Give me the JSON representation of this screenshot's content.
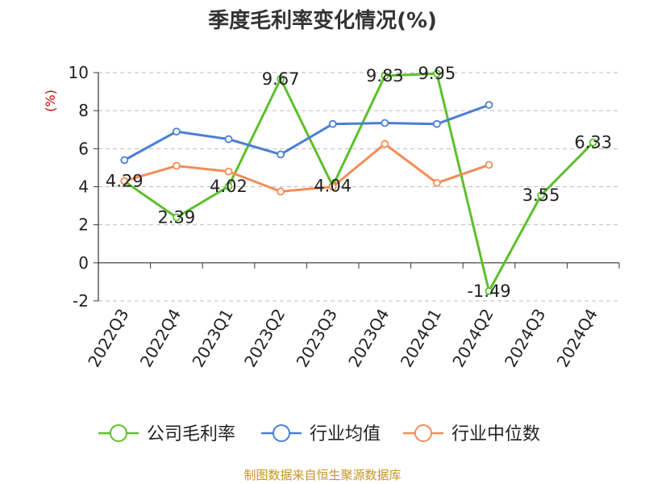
{
  "chart_data": {
    "type": "line",
    "title": "季度毛利率变化情况(%)",
    "ylabel": "(%)",
    "ylim": [
      -2,
      10
    ],
    "yticks": [
      -2,
      0,
      2,
      4,
      6,
      8,
      10
    ],
    "grid": true,
    "legend_position": "bottom",
    "categories": [
      "2022Q3",
      "2022Q4",
      "2023Q1",
      "2023Q2",
      "2023Q3",
      "2023Q4",
      "2024Q1",
      "2024Q2",
      "2024Q3",
      "2024Q4"
    ],
    "series": [
      {
        "name": "公司毛利率",
        "color": "#5cc02b",
        "values": [
          4.29,
          2.39,
          4.02,
          9.67,
          4.04,
          9.83,
          9.95,
          -1.49,
          3.55,
          6.33
        ],
        "labels": [
          "4.29",
          "2.39",
          "4.02",
          "9.67",
          "4.04",
          "9.83",
          "9.95",
          "-1.49",
          "3.55",
          "6.33"
        ]
      },
      {
        "name": "行业均值",
        "color": "#4a7fd4",
        "values": [
          5.4,
          6.9,
          6.5,
          5.7,
          7.3,
          7.35,
          7.3,
          8.3,
          null,
          null
        ]
      },
      {
        "name": "行业中位数",
        "color": "#f58c55",
        "values": [
          4.3,
          5.1,
          4.8,
          3.75,
          4.0,
          6.25,
          4.2,
          5.15,
          null,
          null
        ]
      }
    ],
    "source": "制图数据来自恒生聚源数据库"
  }
}
